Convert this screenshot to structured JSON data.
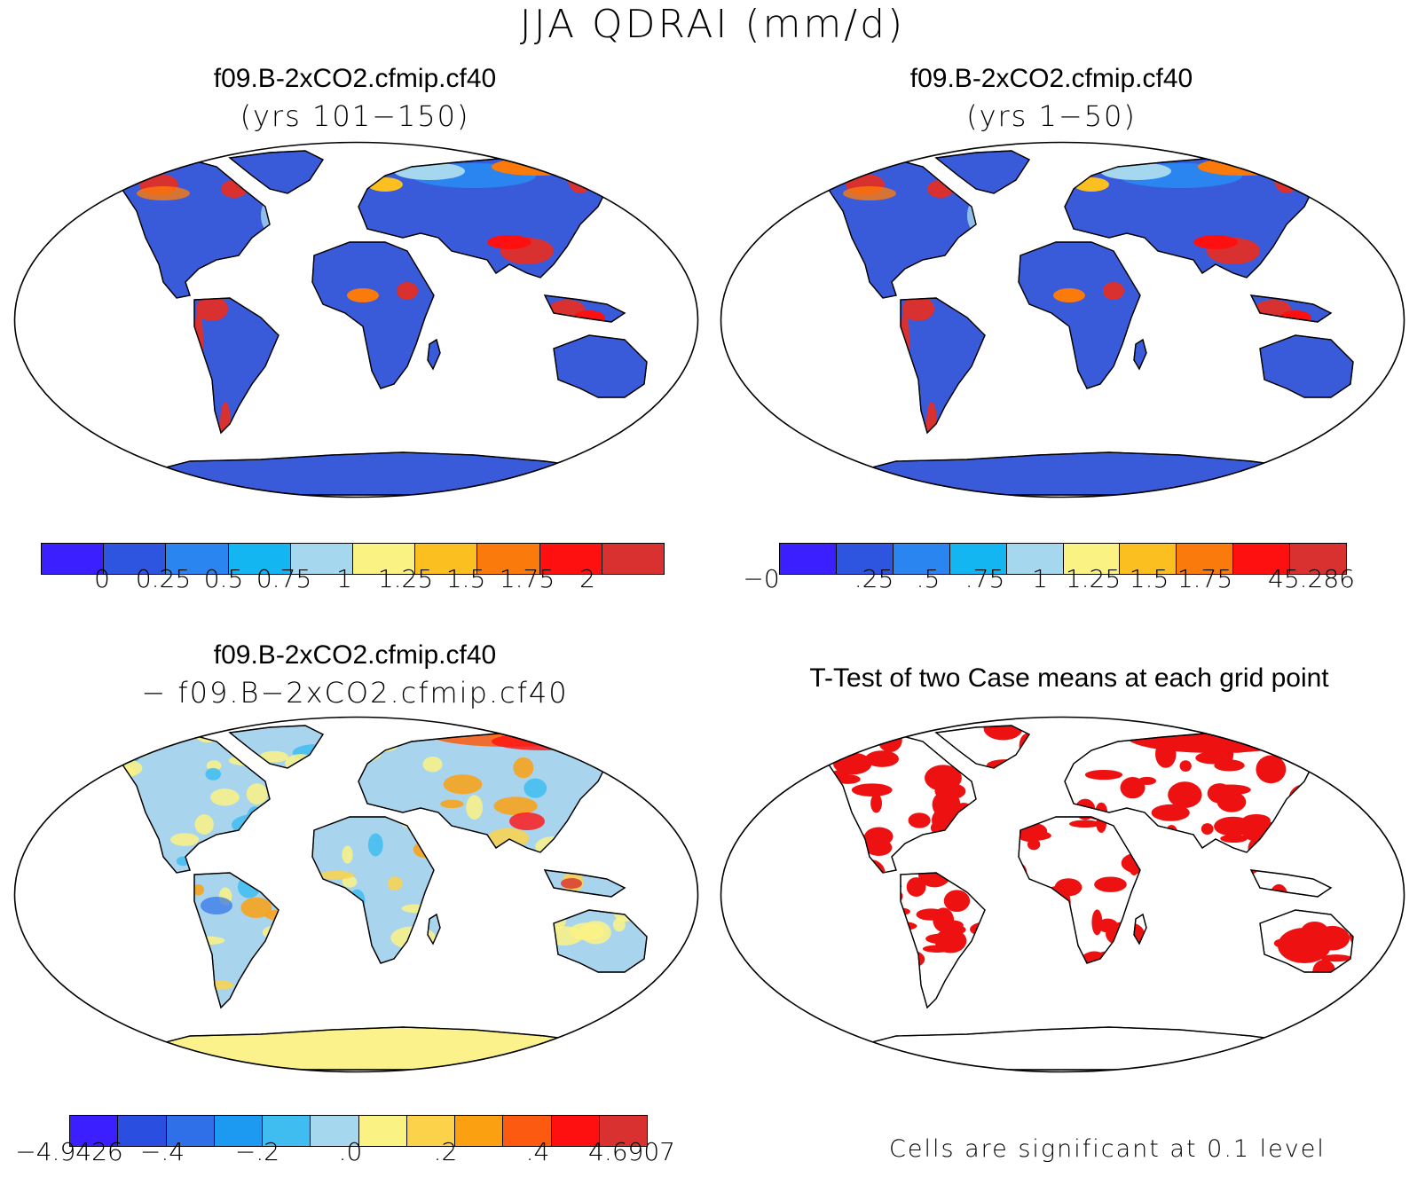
{
  "figure": {
    "title": "JJA QDRAI (mm/d)"
  },
  "panels": {
    "top_left": {
      "title": "f09.B-2xCO2.cfmip.cf40",
      "subtitle": "(yrs 101−150)",
      "colorbar_labels": [
        "0",
        "0.25",
        "0.5",
        "0.75",
        "1",
        "1.25",
        "1.5",
        "1.75",
        "2"
      ]
    },
    "top_right": {
      "title": "f09.B-2xCO2.cfmip.cf40",
      "subtitle": "(yrs 1−50)",
      "colorbar_labels": [
        "−0",
        ".25",
        ".5",
        ".75",
        "1",
        "1.25",
        "1.5",
        "1.75",
        "45.286"
      ]
    },
    "bottom_left": {
      "title": "f09.B-2xCO2.cfmip.cf40",
      "subtitle": "− f09.B−2xCO2.cfmip.cf40",
      "colorbar_labels": [
        "−4.9426",
        "−.4",
        "−.2",
        ".0",
        ".2",
        ".4",
        "4.6907"
      ]
    },
    "bottom_right": {
      "title": "T-Test of two Case means at each grid point",
      "footnote": "Cells are significant at 0.1 level"
    }
  },
  "colors": {
    "land_base": "#3a5bd9",
    "ocean": "#ffffff",
    "diff_land": "#a8d4ee",
    "diff_antarctica": "#fcf28b",
    "significant": "#ee1111",
    "cbar_10": [
      "#3b1fff",
      "#2e55e0",
      "#2a85f0",
      "#14b6f2",
      "#a5d7ef",
      "#fbf284",
      "#fbbf20",
      "#fb7a0c",
      "#ff1010",
      "#d93030"
    ],
    "cbar_12": [
      "#3b1fff",
      "#2a4fe0",
      "#2f70e8",
      "#1c99f0",
      "#3fbdf0",
      "#a5d7ef",
      "#fbf284",
      "#fbd24a",
      "#fba010",
      "#fb5a10",
      "#ff1010",
      "#d93030"
    ]
  }
}
